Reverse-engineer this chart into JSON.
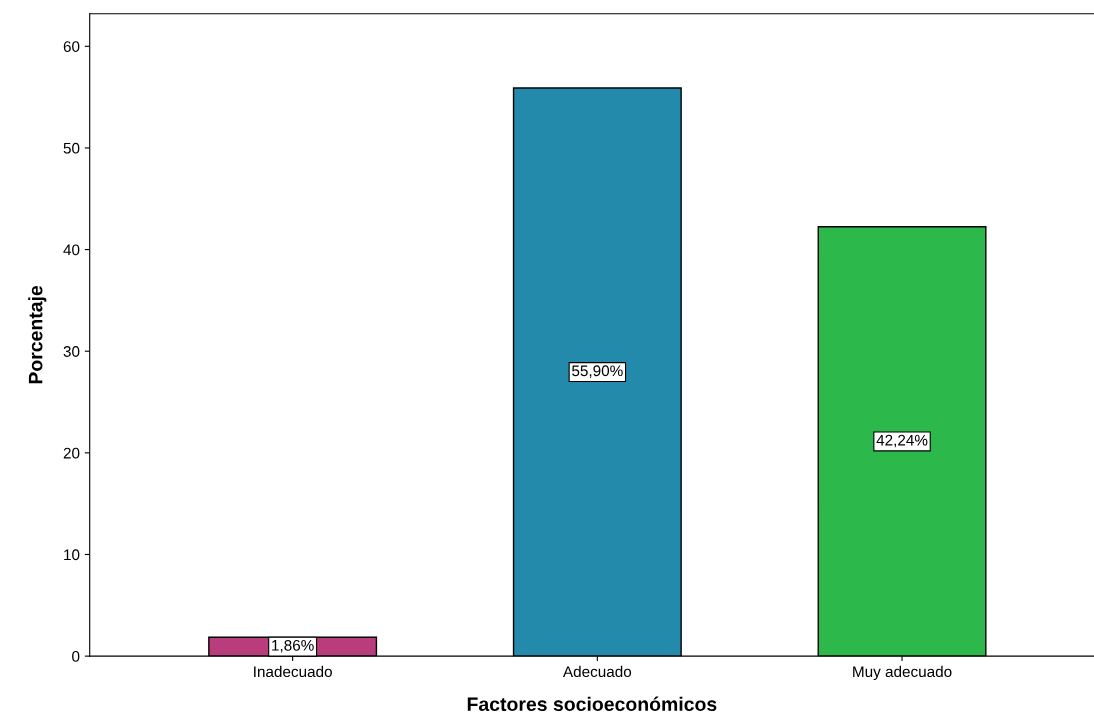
{
  "chart_data": {
    "type": "bar",
    "xlabel": "Factores socioeconómicos",
    "ylabel": "Porcentaje",
    "categories": [
      "Inadecuado",
      "Adecuado",
      "Muy adecuado"
    ],
    "values": [
      1.86,
      55.9,
      42.24
    ],
    "colors": [
      "#b93d7c",
      "#248aac",
      "#2db84b"
    ],
    "value_labels": [
      "1,86%",
      "55,90%",
      "42,24%"
    ],
    "ylim": [
      0,
      63.2
    ],
    "yticks": [
      0,
      10,
      20,
      30,
      40,
      50,
      60
    ],
    "grid": false,
    "legend": false
  }
}
